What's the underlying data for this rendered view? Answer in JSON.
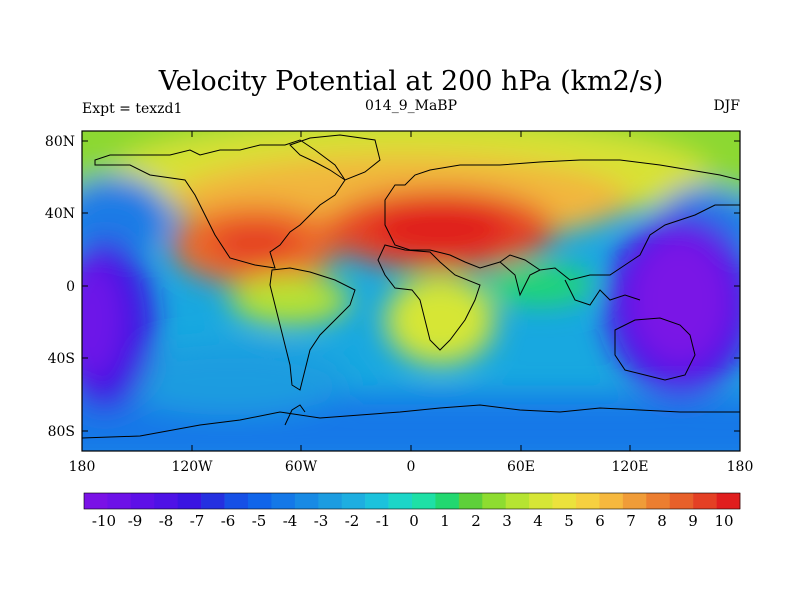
{
  "title": "Velocity Potential at 200 hPa (km2/s)",
  "left_string": "Expt = texzd1",
  "center_string": "014_9_MaBP",
  "right_string": "DJF",
  "x_ticks": [
    "180",
    "120W",
    "60W",
    "0",
    "60E",
    "120E",
    "180"
  ],
  "y_ticks": [
    "80N",
    "40N",
    "0",
    "40S",
    "80S"
  ],
  "colorbar_labels": [
    "-10",
    "-9",
    "-8",
    "-7",
    "-6",
    "-5",
    "-4",
    "-3",
    "-2",
    "-1",
    "0",
    "1",
    "2",
    "3",
    "4",
    "5",
    "6",
    "7",
    "8",
    "9",
    "10"
  ],
  "colorbar_colors": [
    "#7a12e6",
    "#6d12e8",
    "#5e10e8",
    "#4e12e6",
    "#3a14e2",
    "#2430e0",
    "#1650e6",
    "#1065ea",
    "#1478e8",
    "#188ae4",
    "#1c9ce0",
    "#1eaee0",
    "#1cc2dc",
    "#1cd6c8",
    "#1ee0a6",
    "#22d870",
    "#5ed03a",
    "#8edc30",
    "#b6e432",
    "#d6e636",
    "#ece23c",
    "#f6d040",
    "#f6b83e",
    "#f09c38",
    "#ec7e30",
    "#e8602a",
    "#e44024",
    "#e01e1e"
  ],
  "chart_data": {
    "type": "heatmap",
    "field": "200 hPa velocity potential",
    "units": "km2/s",
    "xlim": [
      -180,
      180
    ],
    "ylim": [
      -90,
      90
    ],
    "levels": [
      -10,
      -9,
      -8,
      -7,
      -6,
      -5,
      -4,
      -3,
      -2,
      -1,
      0,
      1,
      2,
      3,
      4,
      5,
      6,
      7,
      8,
      9,
      10
    ],
    "centers": [
      {
        "lon": 0,
        "lat": 25,
        "value": 10
      },
      {
        "lon": -95,
        "lat": 22,
        "value": 9
      },
      {
        "lon": 165,
        "lat": -15,
        "value": -10
      },
      {
        "lon": -175,
        "lat": -15,
        "value": -10
      },
      {
        "lon": -160,
        "lat": 40,
        "value": -3
      },
      {
        "lon": 165,
        "lat": 45,
        "value": -3
      },
      {
        "lon": 15,
        "lat": -30,
        "value": 2
      }
    ]
  }
}
